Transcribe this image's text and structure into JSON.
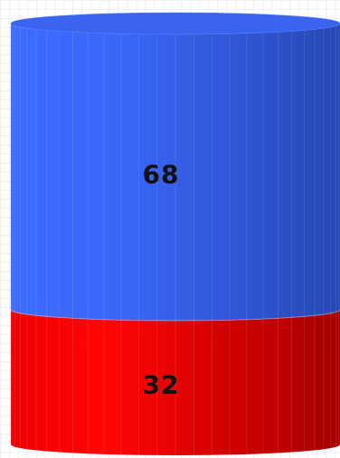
{
  "chart_data": {
    "type": "bar",
    "chart_style": "3d-cylinder-stacked-percent",
    "title": "",
    "xlabel": "",
    "ylabel": "",
    "ylim": [
      0,
      100
    ],
    "grid": true,
    "legend": "none",
    "categories": [
      ""
    ],
    "series": [
      {
        "values": [
          32
        ],
        "color": "#ff0000",
        "data_label": "32"
      },
      {
        "values": [
          68
        ],
        "color": "#3366ff",
        "data_label": "68"
      }
    ]
  }
}
